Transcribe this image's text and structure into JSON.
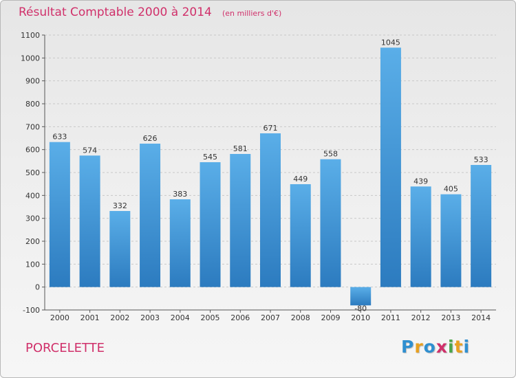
{
  "header": {
    "title": "Résultat Comptable 2000 à 2014",
    "subtitle": "(en milliers d'€)"
  },
  "footer": {
    "town": "PORCELETTE",
    "logo": {
      "text": "Proxiti",
      "letters": [
        {
          "ch": "P",
          "color": "#2f8fd0"
        },
        {
          "ch": "r",
          "color": "#e8a020"
        },
        {
          "ch": "o",
          "color": "#2f8fd0"
        },
        {
          "ch": "x",
          "color": "#d0306a"
        },
        {
          "ch": "i",
          "color": "#4aa54a"
        },
        {
          "ch": "t",
          "color": "#e8a020"
        },
        {
          "ch": "i",
          "color": "#2f8fd0"
        }
      ]
    }
  },
  "colors": {
    "bar_top": "#5aaee8",
    "bar_bottom": "#2c7bbf",
    "title": "#d0306a"
  },
  "chart_data": {
    "type": "bar",
    "categories": [
      "2000",
      "2001",
      "2002",
      "2003",
      "2004",
      "2005",
      "2006",
      "2007",
      "2008",
      "2009",
      "2010",
      "2011",
      "2012",
      "2013",
      "2014"
    ],
    "values": [
      633,
      574,
      332,
      626,
      383,
      545,
      581,
      671,
      449,
      558,
      -80,
      1045,
      439,
      405,
      533
    ],
    "ylim": [
      -100,
      1100
    ],
    "yticks": [
      -100,
      0,
      100,
      200,
      300,
      400,
      500,
      600,
      700,
      800,
      900,
      1000,
      1100
    ],
    "grid": true,
    "legend": "none"
  }
}
